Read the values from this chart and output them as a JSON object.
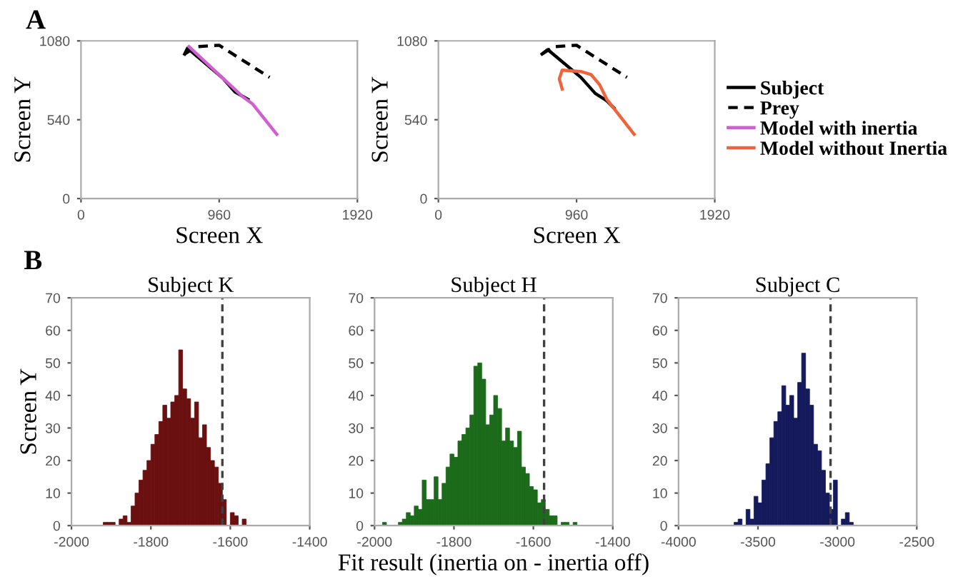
{
  "chart_data": [
    {
      "type": "line",
      "xlabel": "Screen X",
      "ylabel": "Screen Y",
      "annotations": [
        "A"
      ],
      "xlim": [
        0,
        1920
      ],
      "ylim": [
        0,
        1080
      ],
      "xticks": [
        0,
        960,
        1920
      ],
      "yticks": [
        0,
        540,
        1080
      ],
      "grid": false,
      "legend": "right",
      "marker": "none",
      "series": [
        {
          "name": "Subject",
          "color": "#000000",
          "line_style": "solid",
          "x": [
            720,
            740,
            990,
            1070,
            1160
          ],
          "values": [
            990,
            1030,
            820,
            730,
            680
          ]
        },
        {
          "name": "Prey",
          "color": "#000000",
          "line_style": "dashed",
          "x": [
            720,
            800,
            960,
            1310
          ],
          "values": [
            990,
            1040,
            1050,
            830
          ]
        },
        {
          "name": "Model with inertia",
          "color": "#d25fd2",
          "line_style": "solid",
          "x": [
            750,
            990,
            1120,
            1190,
            1360
          ],
          "values": [
            1040,
            820,
            700,
            650,
            440
          ]
        }
      ]
    },
    {
      "type": "line",
      "xlabel": "Screen X",
      "ylabel": "Screen Y",
      "xlim": [
        0,
        1920
      ],
      "ylim": [
        0,
        1080
      ],
      "xticks": [
        0,
        960,
        1920
      ],
      "yticks": [
        0,
        540,
        1080
      ],
      "grid": false,
      "legend": "right",
      "marker": "none",
      "series": [
        {
          "name": "Subject",
          "color": "#000000",
          "line_style": "solid",
          "x": [
            720,
            760,
            990,
            1090,
            1170,
            1220
          ],
          "values": [
            990,
            1020,
            830,
            720,
            670,
            620
          ]
        },
        {
          "name": "Prey",
          "color": "#000000",
          "line_style": "dashed",
          "x": [
            720,
            800,
            960,
            1310
          ],
          "values": [
            990,
            1040,
            1050,
            830
          ]
        },
        {
          "name": "Model without Inertia",
          "color": "#f0643c",
          "line_style": "solid",
          "x": [
            860,
            840,
            860,
            990,
            1060,
            1120,
            1170,
            1360
          ],
          "values": [
            750,
            820,
            880,
            870,
            850,
            780,
            680,
            440
          ]
        }
      ]
    },
    {
      "type": "histogram",
      "title": "Subject K",
      "ylabel": "Screen Y",
      "annotations": [
        "B"
      ],
      "color": "#6b1010",
      "xlim": [
        -2000,
        -1400
      ],
      "ylim": [
        0,
        70
      ],
      "xticks": [
        -2000,
        -1800,
        -1600,
        -1400
      ],
      "yticks": [
        0,
        10,
        20,
        30,
        40,
        50,
        60,
        70
      ],
      "grid": false,
      "bins": [
        -1920,
        -1910,
        -1900,
        -1890,
        -1880,
        -1870,
        -1860,
        -1850,
        -1840,
        -1830,
        -1820,
        -1810,
        -1800,
        -1790,
        -1780,
        -1770,
        -1760,
        -1750,
        -1740,
        -1730,
        -1720,
        -1710,
        -1700,
        -1690,
        -1680,
        -1670,
        -1660,
        -1650,
        -1640,
        -1630,
        -1620,
        -1610,
        -1600,
        -1590,
        -1580,
        -1570,
        -1560,
        -1550
      ],
      "values": [
        1,
        1,
        1,
        0,
        2,
        3,
        1,
        6,
        10,
        14,
        17,
        20,
        25,
        28,
        32,
        37,
        33,
        38,
        40,
        54,
        42,
        39,
        33,
        38,
        27,
        31,
        24,
        20,
        18,
        13,
        8,
        0,
        4,
        3,
        0,
        2,
        0
      ],
      "ref_lines": [
        {
          "axis": "x",
          "value": -1620,
          "color": "#404040",
          "line_style": "dashed"
        }
      ]
    },
    {
      "type": "histogram",
      "title": "Subject H",
      "xlabel": "Fit result (inertia on - inertia off)",
      "color": "#1b6b1b",
      "xlim": [
        -2000,
        -1400
      ],
      "ylim": [
        0,
        70
      ],
      "xticks": [
        -2000,
        -1800,
        -1600,
        -1400
      ],
      "yticks": [
        0,
        10,
        20,
        30,
        40,
        50,
        60,
        70
      ],
      "grid": false,
      "bins": [
        -1980,
        -1970,
        -1960,
        -1950,
        -1940,
        -1930,
        -1920,
        -1910,
        -1900,
        -1890,
        -1880,
        -1870,
        -1860,
        -1850,
        -1840,
        -1830,
        -1820,
        -1810,
        -1800,
        -1790,
        -1780,
        -1770,
        -1760,
        -1750,
        -1740,
        -1730,
        -1720,
        -1710,
        -1700,
        -1690,
        -1680,
        -1670,
        -1660,
        -1650,
        -1640,
        -1630,
        -1620,
        -1610,
        -1600,
        -1590,
        -1580,
        -1570,
        -1560,
        -1550,
        -1540,
        -1530,
        -1520,
        -1510,
        -1500,
        -1490,
        -1480
      ],
      "values": [
        1,
        0,
        0,
        0,
        1,
        2,
        4,
        3,
        6,
        5,
        14,
        8,
        8,
        15,
        8,
        13,
        18,
        22,
        21,
        26,
        28,
        30,
        34,
        49,
        50,
        45,
        31,
        34,
        40,
        36,
        26,
        30,
        26,
        24,
        29,
        18,
        16,
        12,
        11,
        7,
        8,
        5,
        3,
        3,
        0,
        1,
        1,
        0,
        1,
        0
      ],
      "ref_lines": [
        {
          "axis": "x",
          "value": -1573,
          "color": "#404040",
          "line_style": "dashed"
        }
      ]
    },
    {
      "type": "histogram",
      "title": "Subject C",
      "color": "#151a5c",
      "xlim": [
        -4000,
        -2500
      ],
      "ylim": [
        0,
        70
      ],
      "xticks": [
        -4000,
        -3500,
        -3000,
        -2500
      ],
      "yticks": [
        0,
        10,
        20,
        30,
        40,
        50,
        60,
        70
      ],
      "grid": false,
      "bins": [
        -3650,
        -3625,
        -3600,
        -3575,
        -3550,
        -3525,
        -3500,
        -3475,
        -3450,
        -3425,
        -3400,
        -3375,
        -3350,
        -3325,
        -3300,
        -3275,
        -3250,
        -3225,
        -3200,
        -3175,
        -3150,
        -3125,
        -3100,
        -3075,
        -3050,
        -3025,
        -3000,
        -2975,
        -2950,
        -2925,
        -2900
      ],
      "values": [
        1,
        2,
        0,
        5,
        2,
        9,
        7,
        14,
        19,
        27,
        32,
        35,
        43,
        37,
        40,
        33,
        44,
        53,
        42,
        37,
        25,
        23,
        17,
        10,
        5,
        14,
        0,
        2,
        4,
        1
      ],
      "ref_lines": [
        {
          "axis": "x",
          "value": -3043,
          "color": "#404040",
          "line_style": "dashed"
        }
      ]
    }
  ]
}
